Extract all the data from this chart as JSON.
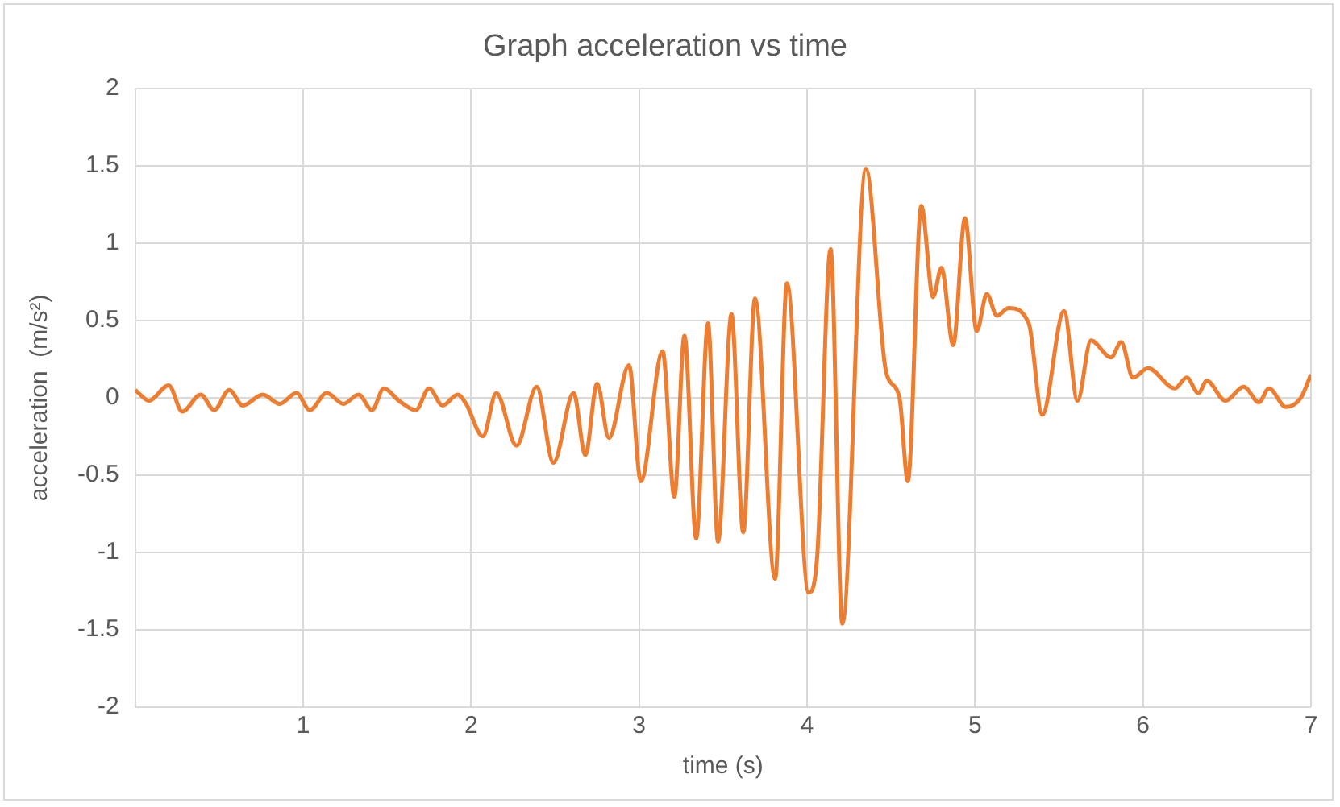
{
  "chart_data": {
    "type": "line",
    "title": "Graph acceleration vs time",
    "xlabel": "time (s)",
    "ylabel": "acceleration  (m/s²)",
    "xlim": [
      0,
      7
    ],
    "xticks": [
      {
        "value": 0,
        "label": null
      },
      1,
      2,
      3,
      4,
      5,
      6,
      7
    ],
    "ylim": [
      -2,
      2
    ],
    "yticks": [
      -2,
      -1.5,
      -1,
      -0.5,
      0,
      0.5,
      1,
      1.5,
      2
    ],
    "grid": true,
    "legend": false,
    "marker": "none",
    "line_style": "solid",
    "series": [
      {
        "color": "#ed7d31",
        "x": [
          0,
          0.02,
          0.08,
          0.2,
          0.28,
          0.39,
          0.47,
          0.56,
          0.64,
          0.76,
          0.86,
          0.96,
          1.04,
          1.14,
          1.24,
          1.33,
          1.41,
          1.48,
          1.57,
          1.67,
          1.75,
          1.83,
          1.92,
          1.97,
          2.07,
          2.15,
          2.27,
          2.39,
          2.49,
          2.61,
          2.68,
          2.75,
          2.82,
          2.94,
          3.01,
          3.14,
          3.21,
          3.27,
          3.34,
          3.41,
          3.47,
          3.55,
          3.62,
          3.69,
          3.81,
          3.88,
          4.01,
          4.06,
          4.14,
          4.21,
          4.35,
          4.47,
          4.55,
          4.6,
          4.68,
          4.75,
          4.8,
          4.87,
          4.94,
          5.01,
          5.07,
          5.13,
          5.2,
          5.32,
          5.4,
          5.53,
          5.61,
          5.69,
          5.81,
          5.87,
          5.94,
          6.03,
          6.19,
          6.26,
          6.33,
          6.38,
          6.49,
          6.6,
          6.69,
          6.75,
          6.85,
          6.94,
          7
        ],
        "values": [
          0.05,
          0.03,
          -0.02,
          0.08,
          -0.09,
          0.02,
          -0.08,
          0.05,
          -0.05,
          0.02,
          -0.04,
          0.03,
          -0.08,
          0.03,
          -0.04,
          0.02,
          -0.08,
          0.06,
          -0.02,
          -0.08,
          0.06,
          -0.05,
          0.02,
          -0.04,
          -0.25,
          0.03,
          -0.31,
          0.07,
          -0.42,
          0.03,
          -0.37,
          0.09,
          -0.26,
          0.21,
          -0.54,
          0.3,
          -0.64,
          0.4,
          -0.91,
          0.48,
          -0.93,
          0.54,
          -0.87,
          0.64,
          -1.17,
          0.74,
          -1.26,
          -1.03,
          0.96,
          -1.46,
          1.48,
          0.17,
          0,
          -0.54,
          1.24,
          0.65,
          0.84,
          0.34,
          1.16,
          0.43,
          0.67,
          0.53,
          0.58,
          0.48,
          -0.11,
          0.56,
          -0.02,
          0.37,
          0.26,
          0.36,
          0.13,
          0.19,
          0.06,
          0.13,
          0.03,
          0.11,
          -0.02,
          0.07,
          -0.03,
          0.06,
          -0.06,
          0,
          0.15
        ]
      }
    ]
  }
}
